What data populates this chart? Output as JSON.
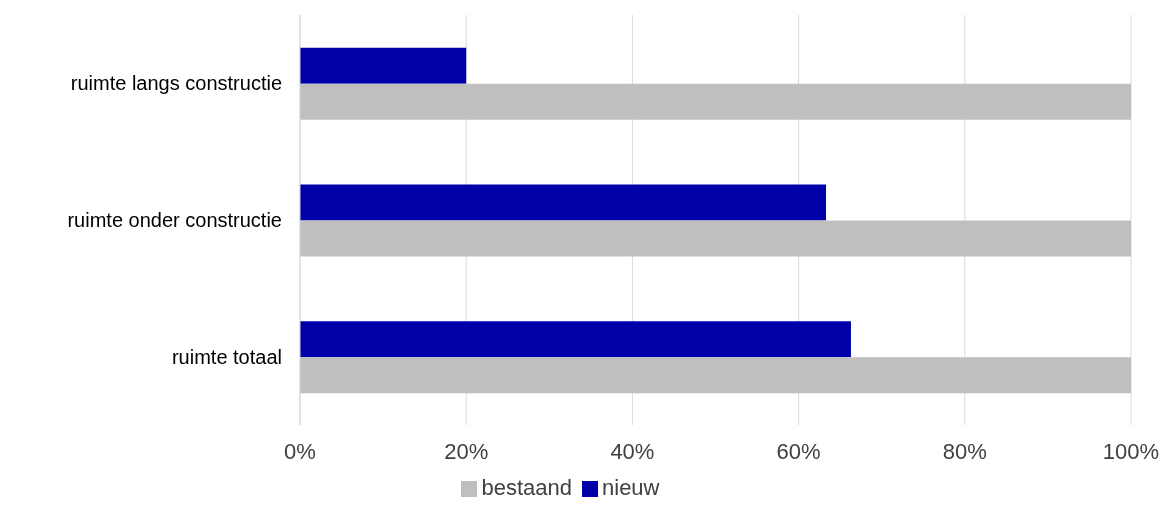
{
  "chart_data": {
    "type": "bar",
    "orientation": "horizontal",
    "categories": [
      "ruimte langs constructie",
      "ruimte onder constructie",
      "ruimte totaal"
    ],
    "series": [
      {
        "name": "nieuw",
        "color": "#0000a8",
        "values": [
          20,
          63.3,
          66.3
        ]
      },
      {
        "name": "bestaand",
        "color": "#bfbfbf",
        "values": [
          100,
          100,
          100
        ]
      }
    ],
    "xlim": [
      0,
      100
    ],
    "xticks": [
      {
        "value": 0,
        "label": "0%"
      },
      {
        "value": 20,
        "label": "20%"
      },
      {
        "value": 40,
        "label": "40%"
      },
      {
        "value": 60,
        "label": "60%"
      },
      {
        "value": 80,
        "label": "80%"
      },
      {
        "value": 100,
        "label": "100%"
      }
    ],
    "grid": "x",
    "legend": "bottom"
  }
}
